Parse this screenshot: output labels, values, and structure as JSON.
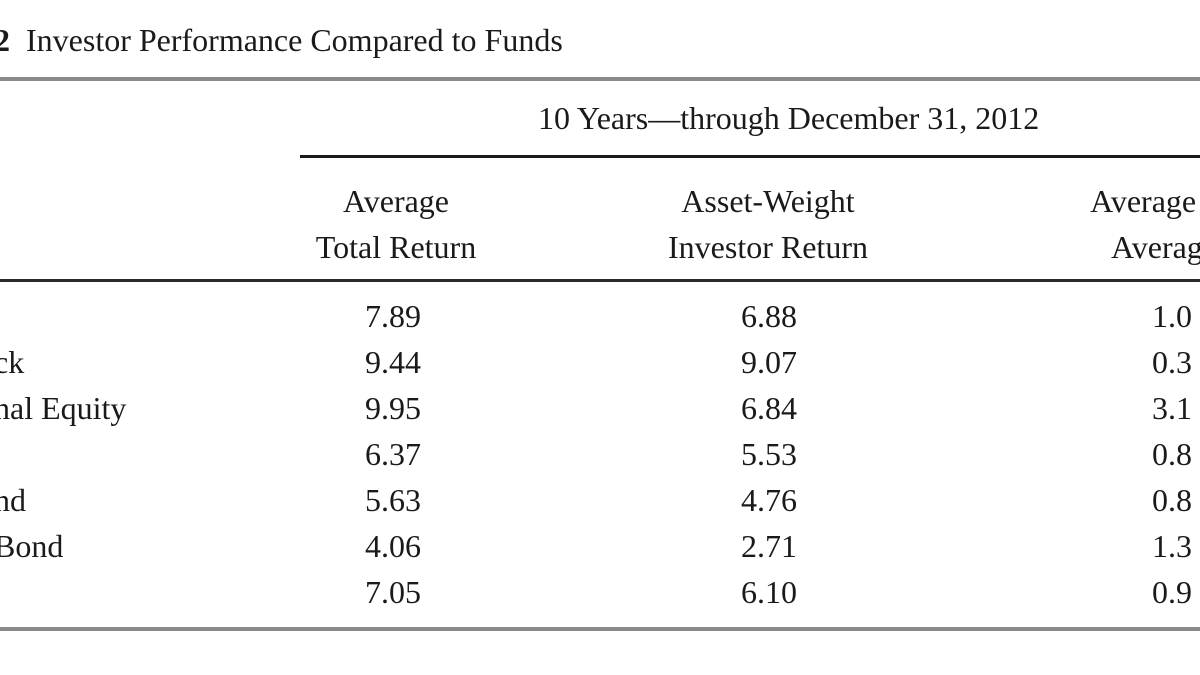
{
  "table": {
    "number": "2",
    "title": "Investor Performance Compared to Funds",
    "group_header": "10 Years—through December 31, 2012",
    "columns": [
      {
        "line1": "Average",
        "line2": "Total Return"
      },
      {
        "line1": "Asset-Weight",
        "line2": "Investor Return"
      },
      {
        "line1": "Average Fu",
        "line2": "Average"
      }
    ],
    "rows": [
      {
        "label": "",
        "values": [
          "7.89",
          "6.88",
          "1.0"
        ]
      },
      {
        "label": "ck",
        "values": [
          "9.44",
          "9.07",
          "0.3"
        ]
      },
      {
        "label": "nal Equity",
        "values": [
          "9.95",
          "6.84",
          "3.1"
        ]
      },
      {
        "label": "",
        "values": [
          "6.37",
          "5.53",
          "0.8"
        ]
      },
      {
        "label": "nd",
        "values": [
          "5.63",
          "4.76",
          "0.8"
        ]
      },
      {
        "label": " Bond",
        "values": [
          "4.06",
          "2.71",
          "1.3"
        ]
      },
      {
        "label": "",
        "values": [
          "7.05",
          "6.10",
          "0.9"
        ]
      }
    ]
  }
}
